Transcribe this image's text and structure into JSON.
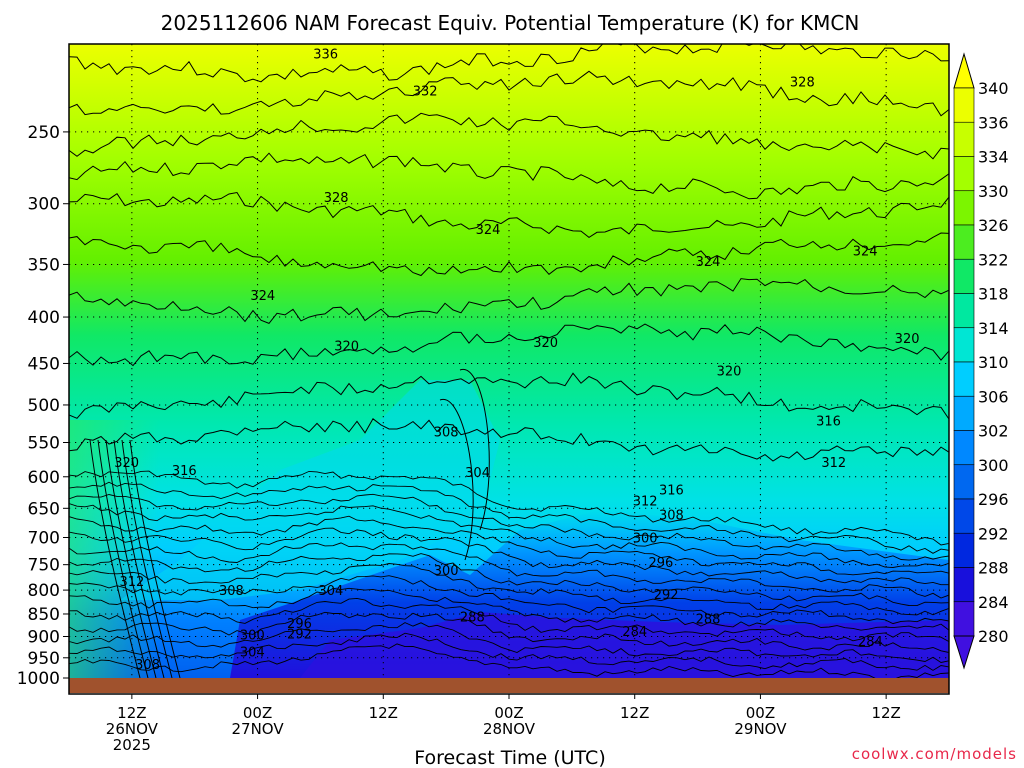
{
  "chart_data": {
    "type": "heatmap",
    "title": "2025112606 NAM Forecast Equiv. Potential Temperature (K) for KMCN",
    "xlabel": "Forecast Time (UTC)",
    "ylabel": "",
    "credit": "coolwx.com/models",
    "y_axis": {
      "scale": "log-pressure",
      "range": [
        1000,
        200
      ],
      "ticks": [
        250,
        300,
        350,
        400,
        450,
        500,
        550,
        600,
        650,
        700,
        750,
        800,
        850,
        900,
        950,
        1000
      ]
    },
    "x_axis": {
      "range_hours": [
        0,
        84
      ],
      "ticks": [
        {
          "hour": 6,
          "line1": "12Z",
          "line2": "26NOV",
          "line3": "2025"
        },
        {
          "hour": 18,
          "line1": "00Z",
          "line2": "27NOV",
          "line3": ""
        },
        {
          "hour": 30,
          "line1": "12Z",
          "line2": "",
          "line3": ""
        },
        {
          "hour": 42,
          "line1": "00Z",
          "line2": "28NOV",
          "line3": ""
        },
        {
          "hour": 54,
          "line1": "12Z",
          "line2": "",
          "line3": ""
        },
        {
          "hour": 66,
          "line1": "00Z",
          "line2": "29NOV",
          "line3": ""
        },
        {
          "hour": 78,
          "line1": "12Z",
          "line2": "",
          "line3": ""
        }
      ]
    },
    "grid": true,
    "colorbar": {
      "labels": [
        "340",
        "336",
        "334",
        "330",
        "326",
        "322",
        "318",
        "314",
        "310",
        "306",
        "302",
        "300",
        "296",
        "292",
        "288",
        "284",
        "280"
      ],
      "colors": [
        "#ffff00",
        "#ecff00",
        "#c8ff00",
        "#a4ff00",
        "#7cf500",
        "#4ced20",
        "#10e866",
        "#00e8a0",
        "#00e6d4",
        "#00ceff",
        "#00aaff",
        "#0088ff",
        "#0068f0",
        "#0048e8",
        "#0028e0",
        "#1810dc",
        "#4010e0"
      ]
    },
    "contour_labels": [
      {
        "text": "336",
        "hour": 24.5,
        "p": 205
      },
      {
        "text": "332",
        "hour": 34,
        "p": 225
      },
      {
        "text": "328",
        "hour": 70,
        "p": 220
      },
      {
        "text": "328",
        "hour": 25.5,
        "p": 295
      },
      {
        "text": "324",
        "hour": 40,
        "p": 320
      },
      {
        "text": "324",
        "hour": 61,
        "p": 347
      },
      {
        "text": "324",
        "hour": 76,
        "p": 338
      },
      {
        "text": "324",
        "hour": 18.5,
        "p": 378
      },
      {
        "text": "320",
        "hour": 26.5,
        "p": 430
      },
      {
        "text": "320",
        "hour": 45.5,
        "p": 426
      },
      {
        "text": "320",
        "hour": 80,
        "p": 422
      },
      {
        "text": "320",
        "hour": 63,
        "p": 458
      },
      {
        "text": "316",
        "hour": 72.5,
        "p": 520
      },
      {
        "text": "316",
        "hour": 11,
        "p": 590
      },
      {
        "text": "316",
        "hour": 57.5,
        "p": 620
      },
      {
        "text": "312",
        "hour": 73,
        "p": 578
      },
      {
        "text": "312",
        "hour": 55,
        "p": 637
      },
      {
        "text": "308",
        "hour": 57.5,
        "p": 660
      },
      {
        "text": "300",
        "hour": 55,
        "p": 700
      },
      {
        "text": "296",
        "hour": 56.5,
        "p": 745
      },
      {
        "text": "292",
        "hour": 57,
        "p": 808
      },
      {
        "text": "288",
        "hour": 61,
        "p": 860
      },
      {
        "text": "284",
        "hour": 54,
        "p": 888
      },
      {
        "text": "284",
        "hour": 76.5,
        "p": 910
      },
      {
        "text": "308",
        "hour": 36,
        "p": 535
      },
      {
        "text": "304",
        "hour": 39,
        "p": 593
      },
      {
        "text": "300",
        "hour": 36,
        "p": 760
      },
      {
        "text": "304",
        "hour": 25,
        "p": 800
      },
      {
        "text": "308",
        "hour": 15.5,
        "p": 800
      },
      {
        "text": "312",
        "hour": 6,
        "p": 782
      },
      {
        "text": "300",
        "hour": 17.5,
        "p": 895
      },
      {
        "text": "296",
        "hour": 22,
        "p": 870
      },
      {
        "text": "292",
        "hour": 22,
        "p": 893
      },
      {
        "text": "304",
        "hour": 17.5,
        "p": 935
      },
      {
        "text": "288",
        "hour": 38.5,
        "p": 855
      },
      {
        "text": "308",
        "hour": 7.5,
        "p": 965
      },
      {
        "text": "320",
        "hour": 5.5,
        "p": 578
      }
    ]
  }
}
